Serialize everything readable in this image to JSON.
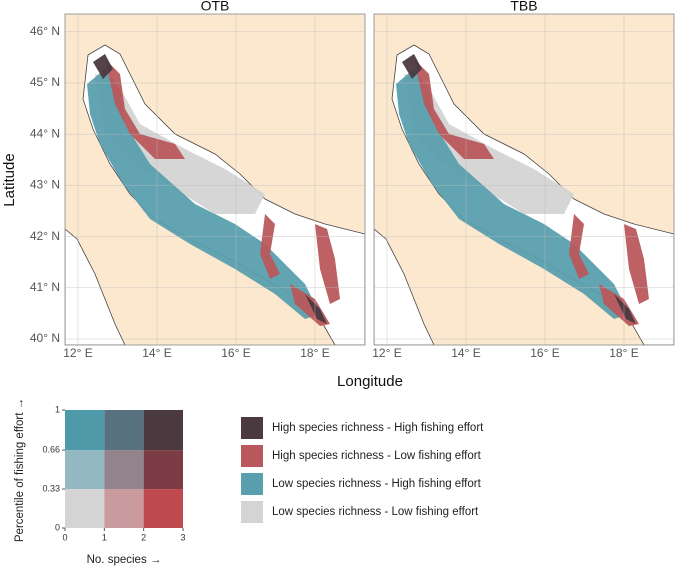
{
  "panels": [
    {
      "title": "OTB"
    },
    {
      "title": "TBB"
    }
  ],
  "map_axes": {
    "x_label": "Longitude",
    "y_label": "Latitude",
    "xticks": [
      {
        "value": 12,
        "label": "12° E"
      },
      {
        "value": 14,
        "label": "14° E"
      },
      {
        "value": 16,
        "label": "16° E"
      },
      {
        "value": 18,
        "label": "18° E"
      }
    ],
    "yticks": [
      {
        "value": 40,
        "label": "40° N"
      },
      {
        "value": 41,
        "label": "41° N"
      },
      {
        "value": 42,
        "label": "42° N"
      },
      {
        "value": 43,
        "label": "43° N"
      },
      {
        "value": 44,
        "label": "44° N"
      },
      {
        "value": 45,
        "label": "45° N"
      },
      {
        "value": 46,
        "label": "46° N"
      }
    ]
  },
  "bivariate_key": {
    "x_label": "No. species →",
    "y_label": "Percentile of fishing effort →",
    "xticks": [
      0,
      1,
      2,
      3
    ],
    "yticks": [
      0,
      0.33,
      0.66,
      1
    ],
    "colors": [
      [
        "#d4d4d4",
        "#c99a9e",
        "#bf4a4e"
      ],
      [
        "#93b8c2",
        "#93838c",
        "#7c3c45"
      ],
      [
        "#4f9aa9",
        "#58717e",
        "#4b3940"
      ]
    ]
  },
  "legend": [
    {
      "name": "High species richness - High fishing effort",
      "color": "#4b3940"
    },
    {
      "name": "High species richness - Low fishing effort",
      "color": "#b9585c"
    },
    {
      "name": "Low species richness - High fishing effort",
      "color": "#5a9fae"
    },
    {
      "name": "Low species richness - Low fishing effort",
      "color": "#d4d4d4"
    }
  ]
}
